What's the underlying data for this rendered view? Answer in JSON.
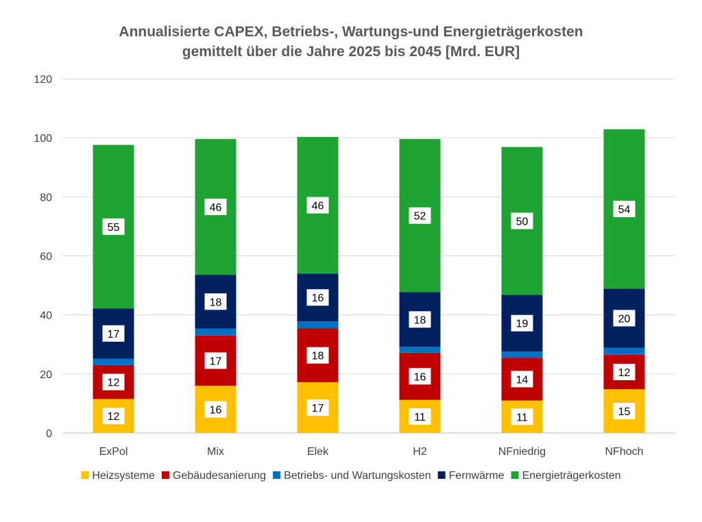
{
  "chart_data": {
    "type": "bar",
    "stacked": true,
    "title_lines": [
      "Annualisierte CAPEX, Betriebs-, Wartungs-und Energieträgerkosten",
      "gemittelt über die Jahre 2025 bis 2045 [Mrd. EUR]"
    ],
    "categories": [
      "ExPol",
      "Mix",
      "Elek",
      "H2",
      "NFniedrig",
      "NFhoch"
    ],
    "ylim": [
      0,
      120
    ],
    "yticks": [
      0,
      20,
      40,
      60,
      80,
      100,
      120
    ],
    "grid": true,
    "legend_position": "bottom",
    "series": [
      {
        "name": "Heizsysteme",
        "color": "#FFC000",
        "values": [
          11.5,
          16,
          17.2,
          11.2,
          11,
          14.8
        ],
        "labels": [
          "12",
          "16",
          "17",
          "11",
          "11",
          "15"
        ]
      },
      {
        "name": "Gebäudesanierung",
        "color": "#C00000",
        "values": [
          11.5,
          17,
          18.2,
          16,
          14.5,
          11.7
        ],
        "labels": [
          "12",
          "17",
          "18",
          "16",
          "14",
          "12"
        ]
      },
      {
        "name": "Betriebs- und Wartungskosten",
        "color": "#0070C0",
        "values": [
          2.2,
          2.4,
          2.4,
          2,
          2.1,
          2.4
        ],
        "labels": [
          "",
          "",
          "",
          "",
          "",
          ""
        ]
      },
      {
        "name": "Fernwärme",
        "color": "#002060",
        "values": [
          17,
          18.2,
          16.2,
          18.5,
          19.2,
          20
        ],
        "labels": [
          "17",
          "18",
          "16",
          "18",
          "19",
          "20"
        ]
      },
      {
        "name": "Energieträgerkosten",
        "color": "#1EA432",
        "values": [
          55.4,
          46,
          46.3,
          51.9,
          50.1,
          54
        ],
        "labels": [
          "55",
          "46",
          "46",
          "52",
          "50",
          "54"
        ]
      }
    ]
  }
}
